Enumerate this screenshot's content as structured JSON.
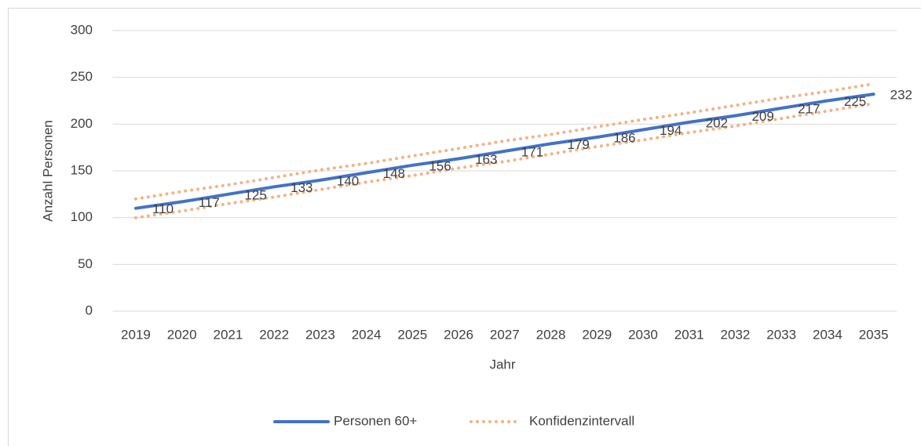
{
  "chart_data": {
    "type": "line",
    "x_label": "Jahr",
    "y_label": "Anzahl Personen",
    "categories": [
      "2019",
      "2020",
      "2021",
      "2022",
      "2023",
      "2024",
      "2025",
      "2026",
      "2027",
      "2028",
      "2029",
      "2030",
      "2031",
      "2032",
      "2033",
      "2034",
      "2035"
    ],
    "series": [
      {
        "name": "Personen 60+",
        "color": "#4472c4",
        "values": [
          110,
          117,
          125,
          133,
          140,
          148,
          156,
          163,
          171,
          179,
          186,
          194,
          202,
          209,
          217,
          225,
          232
        ]
      }
    ],
    "confidence_interval": {
      "name": "Konfidenzintervall",
      "color": "#f4b183",
      "upper": [
        120,
        128,
        135,
        143,
        151,
        158,
        166,
        174,
        182,
        189,
        197,
        205,
        212,
        220,
        228,
        235,
        243
      ],
      "lower": [
        100,
        107,
        115,
        122,
        130,
        138,
        145,
        153,
        160,
        168,
        176,
        183,
        191,
        198,
        206,
        214,
        222
      ]
    },
    "ylim": [
      0,
      300
    ],
    "yticks": [
      0,
      50,
      100,
      150,
      200,
      250,
      300
    ],
    "grid": true,
    "legend": "bottom"
  }
}
